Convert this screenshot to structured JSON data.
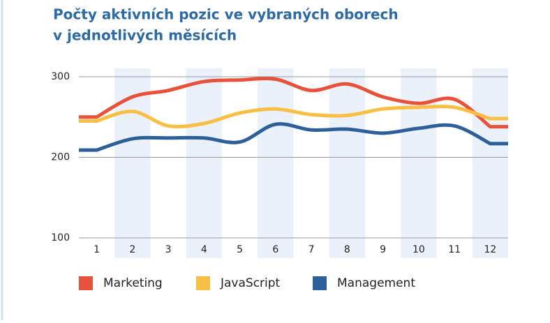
{
  "chart_data": {
    "type": "line",
    "title": [
      "Počty aktivních pozic ve vybraných oborech",
      "v jednotlivých měsících"
    ],
    "categories": [
      "1",
      "2",
      "3",
      "4",
      "5",
      "6",
      "7",
      "8",
      "9",
      "10",
      "11",
      "12"
    ],
    "series": [
      {
        "name": "Marketing",
        "color": "#e8513a",
        "values": [
          250,
          275,
          283,
          294,
          296,
          297,
          283,
          291,
          275,
          267,
          272,
          238
        ]
      },
      {
        "name": "JavaScript",
        "color": "#f9bf45",
        "values": [
          245,
          257,
          239,
          242,
          255,
          260,
          253,
          252,
          260,
          262,
          262,
          248
        ]
      },
      {
        "name": "Management",
        "color": "#2d5f9a",
        "values": [
          209,
          223,
          224,
          224,
          219,
          241,
          234,
          235,
          230,
          236,
          239,
          217
        ]
      }
    ],
    "ylim": [
      100,
      300
    ],
    "yticks": [
      100,
      200,
      300
    ],
    "grid": true
  }
}
